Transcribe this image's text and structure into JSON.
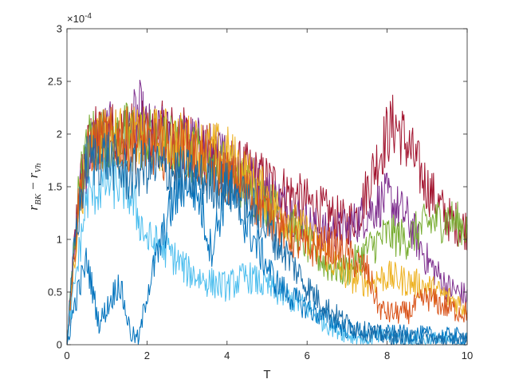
{
  "chart_data": {
    "type": "line",
    "title": "",
    "xlabel": "T",
    "ylabel": "r_BK − r_Vh",
    "ylabel_main_1": "r",
    "ylabel_sub_1": "BK",
    "ylabel_minus": "−",
    "ylabel_main_2": "r",
    "ylabel_sub_2": "Vh",
    "y_exponent_label": "×10",
    "y_exponent_power": "-4",
    "xlim": [
      0,
      10
    ],
    "ylim": [
      0,
      3
    ],
    "xticks": [
      "0",
      "2",
      "4",
      "6",
      "8",
      "10"
    ],
    "yticks": [
      "0",
      "0.5",
      "1",
      "1.5",
      "2",
      "2.5",
      "3"
    ],
    "grid": false,
    "legend": "none",
    "series": [
      {
        "color": "#A2142F",
        "values": [
          [
            0,
            0.0
          ],
          [
            0.3,
            1.5
          ],
          [
            0.6,
            1.95
          ],
          [
            1.0,
            2.0
          ],
          [
            1.5,
            2.0
          ],
          [
            2.0,
            2.0
          ],
          [
            2.5,
            2.0
          ],
          [
            3.0,
            1.95
          ],
          [
            3.5,
            1.8
          ],
          [
            4.0,
            1.7
          ],
          [
            4.5,
            1.65
          ],
          [
            5.0,
            1.55
          ],
          [
            5.5,
            1.45
          ],
          [
            6.0,
            1.35
          ],
          [
            6.5,
            1.25
          ],
          [
            7.0,
            1.15
          ],
          [
            7.3,
            1.25
          ],
          [
            7.6,
            1.6
          ],
          [
            8.0,
            2.0
          ],
          [
            8.2,
            2.1
          ],
          [
            8.5,
            1.9
          ],
          [
            9.0,
            1.5
          ],
          [
            9.5,
            1.2
          ],
          [
            10.0,
            1.1
          ]
        ]
      },
      {
        "color": "#7E2F8E",
        "values": [
          [
            0,
            0.0
          ],
          [
            0.3,
            1.4
          ],
          [
            0.6,
            1.9
          ],
          [
            1.0,
            2.0
          ],
          [
            1.5,
            1.95
          ],
          [
            1.8,
            2.2
          ],
          [
            2.0,
            2.0
          ],
          [
            2.5,
            1.95
          ],
          [
            3.0,
            1.9
          ],
          [
            3.5,
            1.85
          ],
          [
            4.0,
            1.75
          ],
          [
            4.5,
            1.6
          ],
          [
            5.0,
            1.45
          ],
          [
            5.5,
            1.3
          ],
          [
            6.0,
            1.15
          ],
          [
            6.5,
            1.05
          ],
          [
            7.0,
            1.1
          ],
          [
            7.5,
            1.25
          ],
          [
            8.0,
            1.4
          ],
          [
            8.5,
            1.2
          ],
          [
            9.0,
            0.8
          ],
          [
            9.5,
            0.55
          ],
          [
            10.0,
            0.45
          ]
        ]
      },
      {
        "color": "#77AC30",
        "values": [
          [
            0,
            0.0
          ],
          [
            0.3,
            1.5
          ],
          [
            0.6,
            2.0
          ],
          [
            1.0,
            1.95
          ],
          [
            1.5,
            2.0
          ],
          [
            2.0,
            1.95
          ],
          [
            2.5,
            1.9
          ],
          [
            3.0,
            1.85
          ],
          [
            3.5,
            1.75
          ],
          [
            4.0,
            1.65
          ],
          [
            4.5,
            1.5
          ],
          [
            5.0,
            1.35
          ],
          [
            5.5,
            1.15
          ],
          [
            6.0,
            0.95
          ],
          [
            6.5,
            0.75
          ],
          [
            7.0,
            0.7
          ],
          [
            7.5,
            0.9
          ],
          [
            8.0,
            1.05
          ],
          [
            8.5,
            1.0
          ],
          [
            9.0,
            1.15
          ],
          [
            9.5,
            1.2
          ],
          [
            10.0,
            1.1
          ]
        ]
      },
      {
        "color": "#EDB120",
        "values": [
          [
            0,
            0.0
          ],
          [
            0.3,
            1.3
          ],
          [
            0.6,
            1.9
          ],
          [
            1.0,
            2.0
          ],
          [
            1.5,
            1.95
          ],
          [
            2.0,
            1.95
          ],
          [
            2.5,
            1.95
          ],
          [
            3.0,
            1.9
          ],
          [
            3.5,
            1.85
          ],
          [
            4.0,
            1.8
          ],
          [
            4.5,
            1.6
          ],
          [
            5.0,
            1.4
          ],
          [
            5.5,
            1.2
          ],
          [
            6.0,
            1.05
          ],
          [
            6.5,
            0.85
          ],
          [
            7.0,
            0.65
          ],
          [
            7.5,
            0.6
          ],
          [
            8.0,
            0.65
          ],
          [
            8.5,
            0.6
          ],
          [
            9.0,
            0.55
          ],
          [
            9.5,
            0.45
          ],
          [
            10.0,
            0.35
          ]
        ]
      },
      {
        "color": "#D95319",
        "values": [
          [
            0,
            0.0
          ],
          [
            0.3,
            1.4
          ],
          [
            0.6,
            1.9
          ],
          [
            1.0,
            1.95
          ],
          [
            1.5,
            1.95
          ],
          [
            2.0,
            1.9
          ],
          [
            2.5,
            1.85
          ],
          [
            3.0,
            1.85
          ],
          [
            3.5,
            1.7
          ],
          [
            4.0,
            1.6
          ],
          [
            4.5,
            1.45
          ],
          [
            5.0,
            1.25
          ],
          [
            5.5,
            1.05
          ],
          [
            6.0,
            0.9
          ],
          [
            6.5,
            0.95
          ],
          [
            7.0,
            0.85
          ],
          [
            7.5,
            0.7
          ],
          [
            7.8,
            0.35
          ],
          [
            8.0,
            0.3
          ],
          [
            8.5,
            0.3
          ],
          [
            9.0,
            0.45
          ],
          [
            9.5,
            0.35
          ],
          [
            10.0,
            0.3
          ]
        ]
      },
      {
        "color": "#4DBEEE",
        "values": [
          [
            0,
            0.0
          ],
          [
            0.2,
            0.6
          ],
          [
            0.5,
            1.4
          ],
          [
            1.0,
            1.55
          ],
          [
            1.5,
            1.5
          ],
          [
            2.0,
            1.0
          ],
          [
            2.5,
            0.9
          ],
          [
            3.0,
            0.7
          ],
          [
            3.5,
            0.6
          ],
          [
            4.0,
            0.55
          ],
          [
            4.5,
            0.65
          ],
          [
            5.0,
            0.55
          ],
          [
            5.5,
            0.45
          ],
          [
            6.0,
            0.35
          ],
          [
            6.5,
            0.2
          ],
          [
            7.0,
            0.1
          ],
          [
            7.5,
            0.05
          ],
          [
            8.0,
            0.08
          ],
          [
            8.5,
            0.06
          ],
          [
            9.0,
            0.05
          ],
          [
            9.5,
            0.04
          ],
          [
            10.0,
            0.04
          ]
        ]
      },
      {
        "color": "#0072BD",
        "values": [
          [
            0,
            0.0
          ],
          [
            0.2,
            0.4
          ],
          [
            0.5,
            0.8
          ],
          [
            0.8,
            0.2
          ],
          [
            1.0,
            0.35
          ],
          [
            1.3,
            0.6
          ],
          [
            1.6,
            0.1
          ],
          [
            1.8,
            0.05
          ],
          [
            2.0,
            0.5
          ],
          [
            2.3,
            0.9
          ],
          [
            2.6,
            1.3
          ],
          [
            3.0,
            1.6
          ],
          [
            3.3,
            1.4
          ],
          [
            3.6,
            0.9
          ],
          [
            3.8,
            1.2
          ],
          [
            4.0,
            1.5
          ],
          [
            4.4,
            1.2
          ],
          [
            4.8,
            0.9
          ],
          [
            5.2,
            0.6
          ],
          [
            5.6,
            0.45
          ],
          [
            6.0,
            0.35
          ],
          [
            6.5,
            0.25
          ],
          [
            7.0,
            0.15
          ],
          [
            7.5,
            0.12
          ],
          [
            8.0,
            0.1
          ],
          [
            8.5,
            0.1
          ],
          [
            9.0,
            0.09
          ],
          [
            9.5,
            0.08
          ],
          [
            10.0,
            0.08
          ]
        ]
      },
      {
        "color": "#1A6DA8",
        "values": [
          [
            0,
            0.0
          ],
          [
            0.2,
            1.0
          ],
          [
            0.5,
            1.75
          ],
          [
            1.0,
            1.8
          ],
          [
            1.5,
            1.6
          ],
          [
            2.0,
            1.7
          ],
          [
            2.5,
            1.65
          ],
          [
            3.0,
            1.6
          ],
          [
            3.5,
            1.55
          ],
          [
            4.0,
            1.5
          ],
          [
            4.5,
            1.35
          ],
          [
            5.0,
            1.1
          ],
          [
            5.5,
            0.85
          ],
          [
            6.0,
            0.55
          ],
          [
            6.5,
            0.35
          ],
          [
            7.0,
            0.2
          ],
          [
            7.5,
            0.12
          ],
          [
            8.0,
            0.08
          ],
          [
            8.5,
            0.06
          ],
          [
            9.0,
            0.05
          ],
          [
            9.5,
            0.04
          ],
          [
            10.0,
            0.03
          ]
        ]
      }
    ]
  }
}
